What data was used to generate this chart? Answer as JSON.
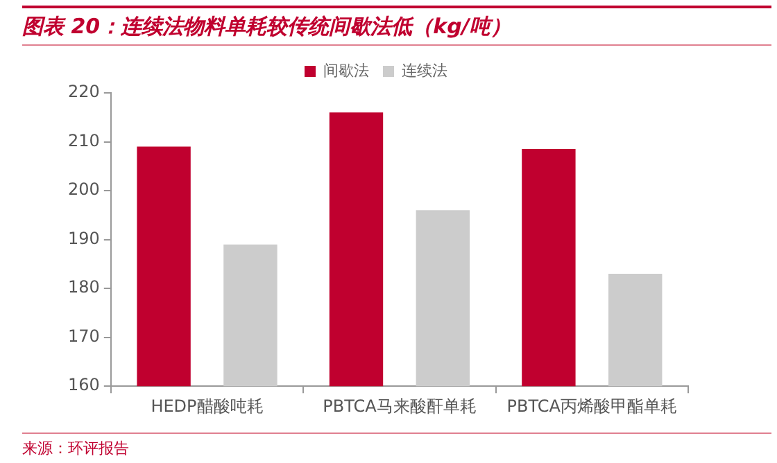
{
  "chart_data": {
    "type": "bar",
    "title": "图表 20：连续法物料单耗较传统间歇法低（kg/吨）",
    "categories": [
      "HEDP醋酸吨耗",
      "PBTCA马来酸酐单耗",
      "PBTCA丙烯酸甲酯单耗"
    ],
    "series": [
      {
        "name": "间歇法",
        "color": "#c0002f",
        "values": [
          209,
          216,
          208.5
        ]
      },
      {
        "name": "连续法",
        "color": "#cccccc",
        "values": [
          189,
          196,
          183
        ]
      }
    ],
    "ylim": [
      160,
      220
    ],
    "yticks": [
      160,
      170,
      180,
      190,
      200,
      210,
      220
    ],
    "grid": false,
    "legend": "top",
    "annotations": [
      "来源：环评报告"
    ]
  }
}
